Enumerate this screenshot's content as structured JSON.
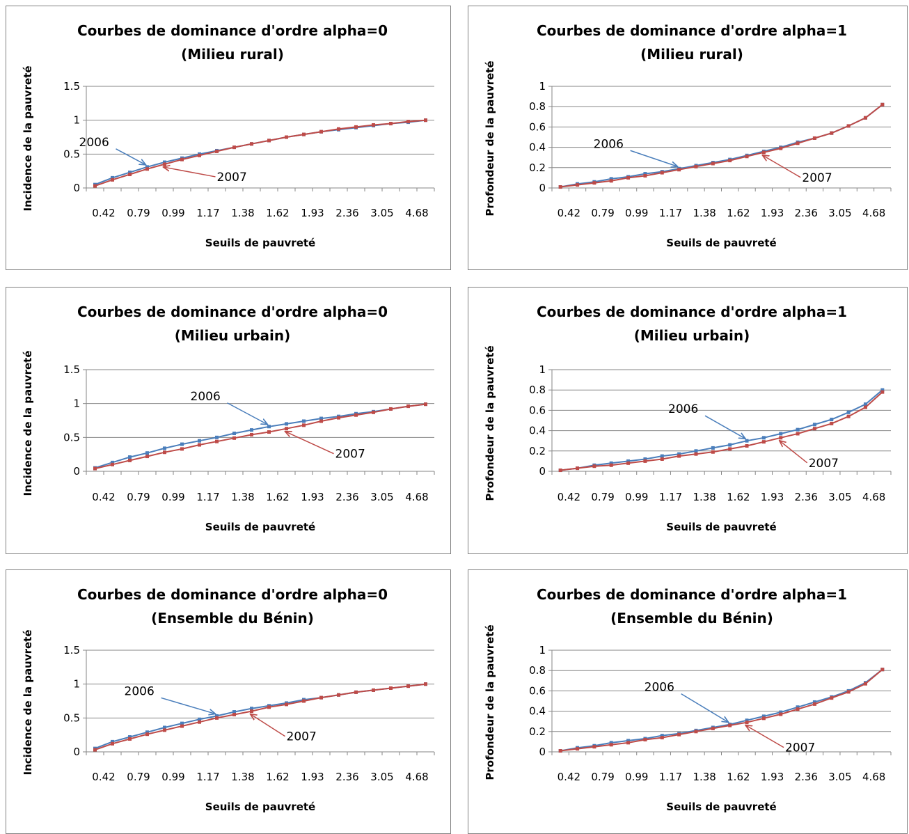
{
  "colors": {
    "series_2006": "#4A7EBB",
    "series_2007": "#BE4B48",
    "grid": "#868686",
    "border": "#808080"
  },
  "chart_data": [
    {
      "type": "line",
      "title": [
        "Courbes de dominance d'ordre alpha=0",
        "(Milieu rural)"
      ],
      "xlabel": "Seuils de pauvreté",
      "ylabel": "Incidence de la pauvreté",
      "ylim": [
        0,
        1.5
      ],
      "yticks": [
        "0",
        "0.5",
        "1",
        "1.5"
      ],
      "categories": [
        "0.42",
        "",
        "0.79",
        "",
        "0.99",
        "",
        "1.17",
        "",
        "1.38",
        "",
        "1.62",
        "",
        "1.93",
        "",
        "2.36",
        "",
        "3.05",
        "",
        "4.68",
        ""
      ],
      "grid": true,
      "legend": "none",
      "series": [
        {
          "name": "2006",
          "values": [
            0.05,
            0.15,
            0.23,
            0.31,
            0.38,
            0.44,
            0.5,
            0.55,
            0.6,
            0.65,
            0.7,
            0.75,
            0.79,
            0.83,
            0.86,
            0.89,
            0.92,
            0.95,
            0.97,
            1.0
          ]
        },
        {
          "name": "2007",
          "values": [
            0.03,
            0.12,
            0.2,
            0.28,
            0.35,
            0.42,
            0.48,
            0.54,
            0.6,
            0.65,
            0.7,
            0.75,
            0.79,
            0.83,
            0.87,
            0.9,
            0.93,
            0.95,
            0.98,
            1.0
          ]
        }
      ],
      "annotations": [
        {
          "text": "2006",
          "series": 0,
          "point": 3
        },
        {
          "text": "2007",
          "series": 1,
          "point": 4
        }
      ]
    },
    {
      "type": "line",
      "title": [
        "Courbes de dominance d'ordre alpha=1",
        "(Milieu rural)"
      ],
      "xlabel": "Seuils de pauvreté",
      "ylabel": "Profondeur  de la pauvreté",
      "ylim": [
        0,
        1
      ],
      "yticks": [
        "0",
        "0.2",
        "0.4",
        "0.6",
        "0.8",
        "1"
      ],
      "categories": [
        "0.42",
        "",
        "0.79",
        "",
        "0.99",
        "",
        "1.17",
        "",
        "1.38",
        "",
        "1.62",
        "",
        "1.93",
        "",
        "2.36",
        "",
        "3.05",
        "",
        "4.68",
        ""
      ],
      "grid": true,
      "legend": "none",
      "series": [
        {
          "name": "2006",
          "values": [
            0.01,
            0.04,
            0.06,
            0.09,
            0.11,
            0.14,
            0.16,
            0.19,
            0.22,
            0.25,
            0.28,
            0.32,
            0.36,
            0.4,
            0.45,
            0.49,
            0.54,
            0.61,
            0.69,
            0.82
          ]
        },
        {
          "name": "2007",
          "values": [
            0.01,
            0.03,
            0.05,
            0.07,
            0.1,
            0.12,
            0.15,
            0.18,
            0.21,
            0.24,
            0.27,
            0.31,
            0.35,
            0.39,
            0.44,
            0.49,
            0.54,
            0.61,
            0.69,
            0.82
          ]
        }
      ],
      "annotations": [
        {
          "text": "2006",
          "series": 0,
          "point": 7
        },
        {
          "text": "2007",
          "series": 1,
          "point": 12
        }
      ]
    },
    {
      "type": "line",
      "title": [
        "Courbes de dominance d'ordre alpha=0",
        "(Milieu urbain)"
      ],
      "xlabel": "Seuils de pauvreté",
      "ylabel": "Incidence de la pauvreté",
      "ylim": [
        0,
        1.5
      ],
      "yticks": [
        "0",
        "0.5",
        "1",
        "1.5"
      ],
      "categories": [
        "0.42",
        "",
        "0.79",
        "",
        "0.99",
        "",
        "1.17",
        "",
        "1.38",
        "",
        "1.62",
        "",
        "1.93",
        "",
        "2.36",
        "",
        "3.05",
        "",
        "4.68",
        ""
      ],
      "grid": true,
      "legend": "none",
      "series": [
        {
          "name": "2006",
          "values": [
            0.05,
            0.13,
            0.21,
            0.27,
            0.34,
            0.4,
            0.45,
            0.5,
            0.56,
            0.61,
            0.66,
            0.7,
            0.74,
            0.78,
            0.81,
            0.85,
            0.88,
            0.92,
            0.96,
            0.99
          ]
        },
        {
          "name": "2007",
          "values": [
            0.04,
            0.1,
            0.16,
            0.22,
            0.28,
            0.33,
            0.39,
            0.44,
            0.49,
            0.54,
            0.58,
            0.63,
            0.68,
            0.74,
            0.79,
            0.83,
            0.87,
            0.92,
            0.96,
            0.99
          ]
        }
      ],
      "annotations": [
        {
          "text": "2006",
          "series": 0,
          "point": 10
        },
        {
          "text": "2007",
          "series": 1,
          "point": 11
        }
      ]
    },
    {
      "type": "line",
      "title": [
        "Courbes de dominance d'ordre alpha=1",
        "(Milieu urbain)"
      ],
      "xlabel": "Seuils de pauvreté",
      "ylabel": "Profondeur  de la pauvreté",
      "ylim": [
        0,
        1
      ],
      "yticks": [
        "0",
        "0.2",
        "0.4",
        "0.6",
        "0.8",
        "1"
      ],
      "categories": [
        "0.42",
        "",
        "0.79",
        "",
        "0.99",
        "",
        "1.17",
        "",
        "1.38",
        "",
        "1.62",
        "",
        "1.93",
        "",
        "2.36",
        "",
        "3.05",
        "",
        "4.68",
        ""
      ],
      "grid": true,
      "legend": "none",
      "series": [
        {
          "name": "2006",
          "values": [
            0.01,
            0.03,
            0.06,
            0.08,
            0.1,
            0.12,
            0.15,
            0.17,
            0.2,
            0.23,
            0.26,
            0.3,
            0.33,
            0.37,
            0.41,
            0.46,
            0.51,
            0.58,
            0.66,
            0.8
          ]
        },
        {
          "name": "2007",
          "values": [
            0.01,
            0.03,
            0.05,
            0.06,
            0.08,
            0.1,
            0.12,
            0.15,
            0.17,
            0.19,
            0.22,
            0.25,
            0.29,
            0.33,
            0.37,
            0.42,
            0.47,
            0.54,
            0.63,
            0.78
          ]
        }
      ],
      "annotations": [
        {
          "text": "2006",
          "series": 0,
          "point": 11
        },
        {
          "text": "2007",
          "series": 1,
          "point": 13
        }
      ]
    },
    {
      "type": "line",
      "title": [
        "Courbes de dominance d'ordre alpha=0",
        "(Ensemble du Bénin)"
      ],
      "xlabel": "Seuils de pauvreté",
      "ylabel": "Incidence de la pauvreté",
      "ylim": [
        0,
        1.5
      ],
      "yticks": [
        "0",
        "0.5",
        "1",
        "1.5"
      ],
      "categories": [
        "0.42",
        "",
        "0.79",
        "",
        "0.99",
        "",
        "1.17",
        "",
        "1.38",
        "",
        "1.62",
        "",
        "1.93",
        "",
        "2.36",
        "",
        "3.05",
        "",
        "4.68",
        ""
      ],
      "grid": true,
      "legend": "none",
      "series": [
        {
          "name": "2006",
          "values": [
            0.05,
            0.15,
            0.22,
            0.29,
            0.36,
            0.42,
            0.48,
            0.53,
            0.59,
            0.64,
            0.68,
            0.72,
            0.77,
            0.8,
            0.84,
            0.88,
            0.91,
            0.94,
            0.97,
            1.0
          ]
        },
        {
          "name": "2007",
          "values": [
            0.03,
            0.12,
            0.19,
            0.26,
            0.32,
            0.38,
            0.44,
            0.5,
            0.55,
            0.6,
            0.66,
            0.7,
            0.75,
            0.8,
            0.84,
            0.88,
            0.91,
            0.94,
            0.97,
            1.0
          ]
        }
      ],
      "annotations": [
        {
          "text": "2006",
          "series": 0,
          "point": 7
        },
        {
          "text": "2007",
          "series": 1,
          "point": 9
        }
      ]
    },
    {
      "type": "line",
      "title": [
        "Courbes de dominance d'ordre alpha=1",
        "(Ensemble du  Bénin)"
      ],
      "xlabel": "Seuils de pauvreté",
      "ylabel": "Profondeur  de la pauvreté",
      "ylim": [
        0,
        1
      ],
      "yticks": [
        "0",
        "0.2",
        "0.4",
        "0.6",
        "0.8",
        "1"
      ],
      "categories": [
        "0.42",
        "",
        "0.79",
        "",
        "0.99",
        "",
        "1.17",
        "",
        "1.38",
        "",
        "1.62",
        "",
        "1.93",
        "",
        "2.36",
        "",
        "3.05",
        "",
        "4.68",
        ""
      ],
      "grid": true,
      "legend": "none",
      "series": [
        {
          "name": "2006",
          "values": [
            0.01,
            0.04,
            0.06,
            0.09,
            0.11,
            0.13,
            0.16,
            0.18,
            0.21,
            0.24,
            0.27,
            0.31,
            0.35,
            0.39,
            0.44,
            0.49,
            0.54,
            0.6,
            0.68,
            0.81
          ]
        },
        {
          "name": "2007",
          "values": [
            0.01,
            0.03,
            0.05,
            0.07,
            0.09,
            0.12,
            0.14,
            0.17,
            0.2,
            0.23,
            0.26,
            0.29,
            0.33,
            0.37,
            0.42,
            0.47,
            0.53,
            0.59,
            0.67,
            0.81
          ]
        }
      ],
      "annotations": [
        {
          "text": "2006",
          "series": 0,
          "point": 10
        },
        {
          "text": "2007",
          "series": 1,
          "point": 11
        }
      ]
    }
  ]
}
